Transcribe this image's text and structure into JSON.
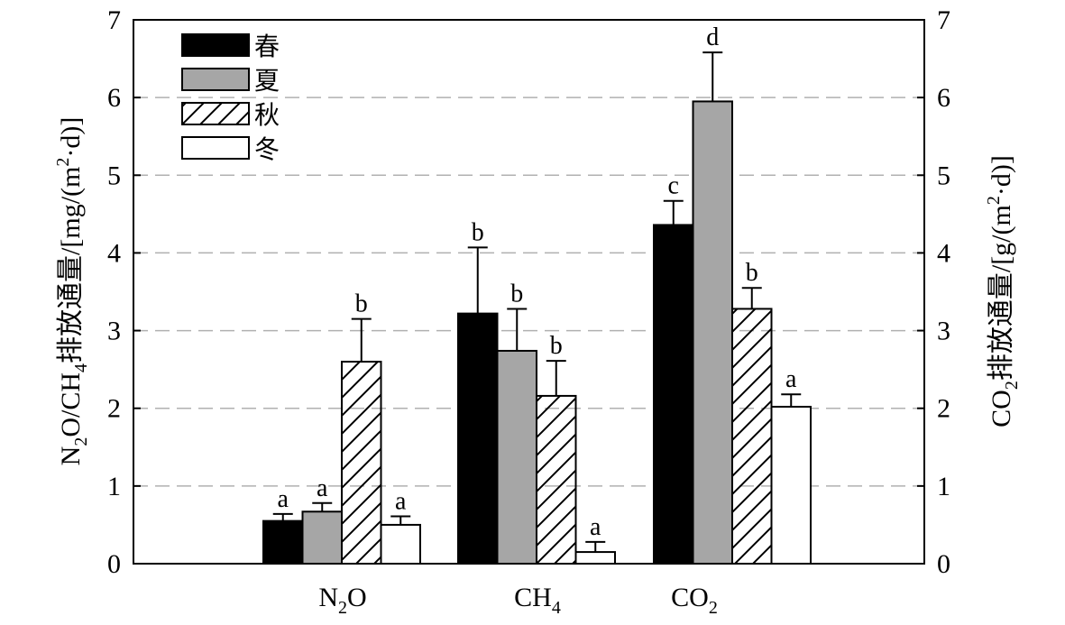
{
  "chart_data": {
    "type": "bar",
    "title": "",
    "categories": [
      {
        "base": "N",
        "sub": "2",
        "rest": "O"
      },
      {
        "base": "CH",
        "sub": "4",
        "rest": ""
      },
      {
        "base": "CO",
        "sub": "2",
        "rest": ""
      }
    ],
    "category_labels": [
      "N2O",
      "CH4",
      "CO2"
    ],
    "ylabel_left": {
      "p1": "N",
      "s1": "2",
      "p2": "O/CH",
      "s2": "4",
      "p3": "排放通量/[mg/(m",
      "sup": "2",
      "p4": "·d)]"
    },
    "ylabel_right": {
      "p1": "CO",
      "s1": "2",
      "p2": "排放通量/[g/(m",
      "sup": "2",
      "p3": "·d)]"
    },
    "ylim_left": [
      0,
      7
    ],
    "ylim_right": [
      0,
      7
    ],
    "yticks": [
      "0",
      "1",
      "2",
      "3",
      "4",
      "5",
      "6",
      "7"
    ],
    "grid": "horizontal dashed",
    "legend_position": "top-left",
    "series": [
      {
        "name": "春",
        "fill": "#000000",
        "pattern": "solid",
        "values": [
          0.55,
          3.22,
          4.36
        ],
        "errors": [
          0.09,
          0.85,
          0.31
        ],
        "letters": [
          "a",
          "b",
          "c"
        ]
      },
      {
        "name": "夏",
        "fill": "#a6a6a6",
        "pattern": "solid",
        "values": [
          0.67,
          2.74,
          5.95
        ],
        "errors": [
          0.11,
          0.54,
          0.63
        ],
        "letters": [
          "a",
          "b",
          "d"
        ]
      },
      {
        "name": "秋",
        "fill": "#ffffff",
        "pattern": "hatch",
        "values": [
          2.6,
          2.16,
          3.28
        ],
        "errors": [
          0.55,
          0.45,
          0.27
        ],
        "letters": [
          "b",
          "b",
          "b"
        ]
      },
      {
        "name": "冬",
        "fill": "#ffffff",
        "pattern": "solid",
        "values": [
          0.5,
          0.15,
          2.02
        ],
        "errors": [
          0.11,
          0.13,
          0.16
        ],
        "letters": [
          "a",
          "a",
          "a"
        ]
      }
    ]
  }
}
